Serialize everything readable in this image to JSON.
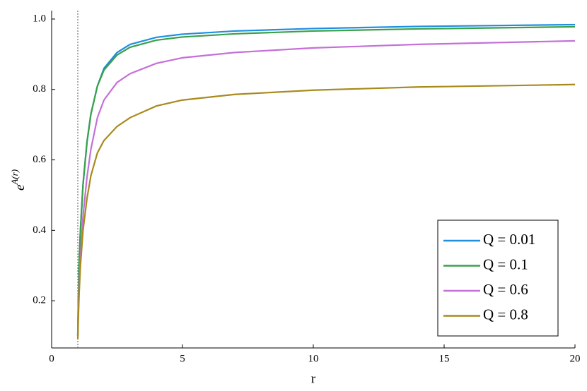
{
  "chart_data": {
    "type": "line",
    "xlabel": "r",
    "ylabel": {
      "base": "e",
      "exponent": "A(r)"
    },
    "x": [
      1,
      1.02,
      1.05,
      1.1,
      1.2,
      1.35,
      1.5,
      1.75,
      2,
      2.5,
      3,
      4,
      5,
      7,
      10,
      14,
      20
    ],
    "series": [
      {
        "name": "Q = 0.01",
        "color": "#1f8fe0",
        "values": [
          0.1,
          0.2,
          0.3,
          0.4,
          0.53,
          0.65,
          0.73,
          0.81,
          0.86,
          0.905,
          0.928,
          0.948,
          0.957,
          0.966,
          0.973,
          0.979,
          0.984
        ]
      },
      {
        "name": "Q = 0.1",
        "color": "#3aa04a",
        "values": [
          0.1,
          0.2,
          0.3,
          0.4,
          0.53,
          0.65,
          0.73,
          0.81,
          0.855,
          0.898,
          0.92,
          0.94,
          0.949,
          0.958,
          0.966,
          0.972,
          0.978
        ]
      },
      {
        "name": "Q = 0.6",
        "color": "#c470d8",
        "values": [
          0.1,
          0.17,
          0.24,
          0.32,
          0.44,
          0.55,
          0.63,
          0.72,
          0.77,
          0.82,
          0.845,
          0.874,
          0.89,
          0.905,
          0.918,
          0.928,
          0.938
        ]
      },
      {
        "name": "Q = 0.8",
        "color": "#a88a1c",
        "values": [
          0.09,
          0.15,
          0.22,
          0.3,
          0.4,
          0.49,
          0.555,
          0.62,
          0.655,
          0.695,
          0.72,
          0.753,
          0.77,
          0.786,
          0.798,
          0.807,
          0.814
        ]
      }
    ],
    "vline": 1,
    "xlim": [
      0,
      20
    ],
    "xticks": [
      0,
      5,
      10,
      15,
      20
    ],
    "ylim": [
      0.066,
      1.024
    ],
    "yticks": [
      0.2,
      0.4,
      0.6,
      0.8,
      {
        "value": 1,
        "label": "1.0"
      }
    ],
    "grid": false,
    "legend": "bottom-right"
  }
}
